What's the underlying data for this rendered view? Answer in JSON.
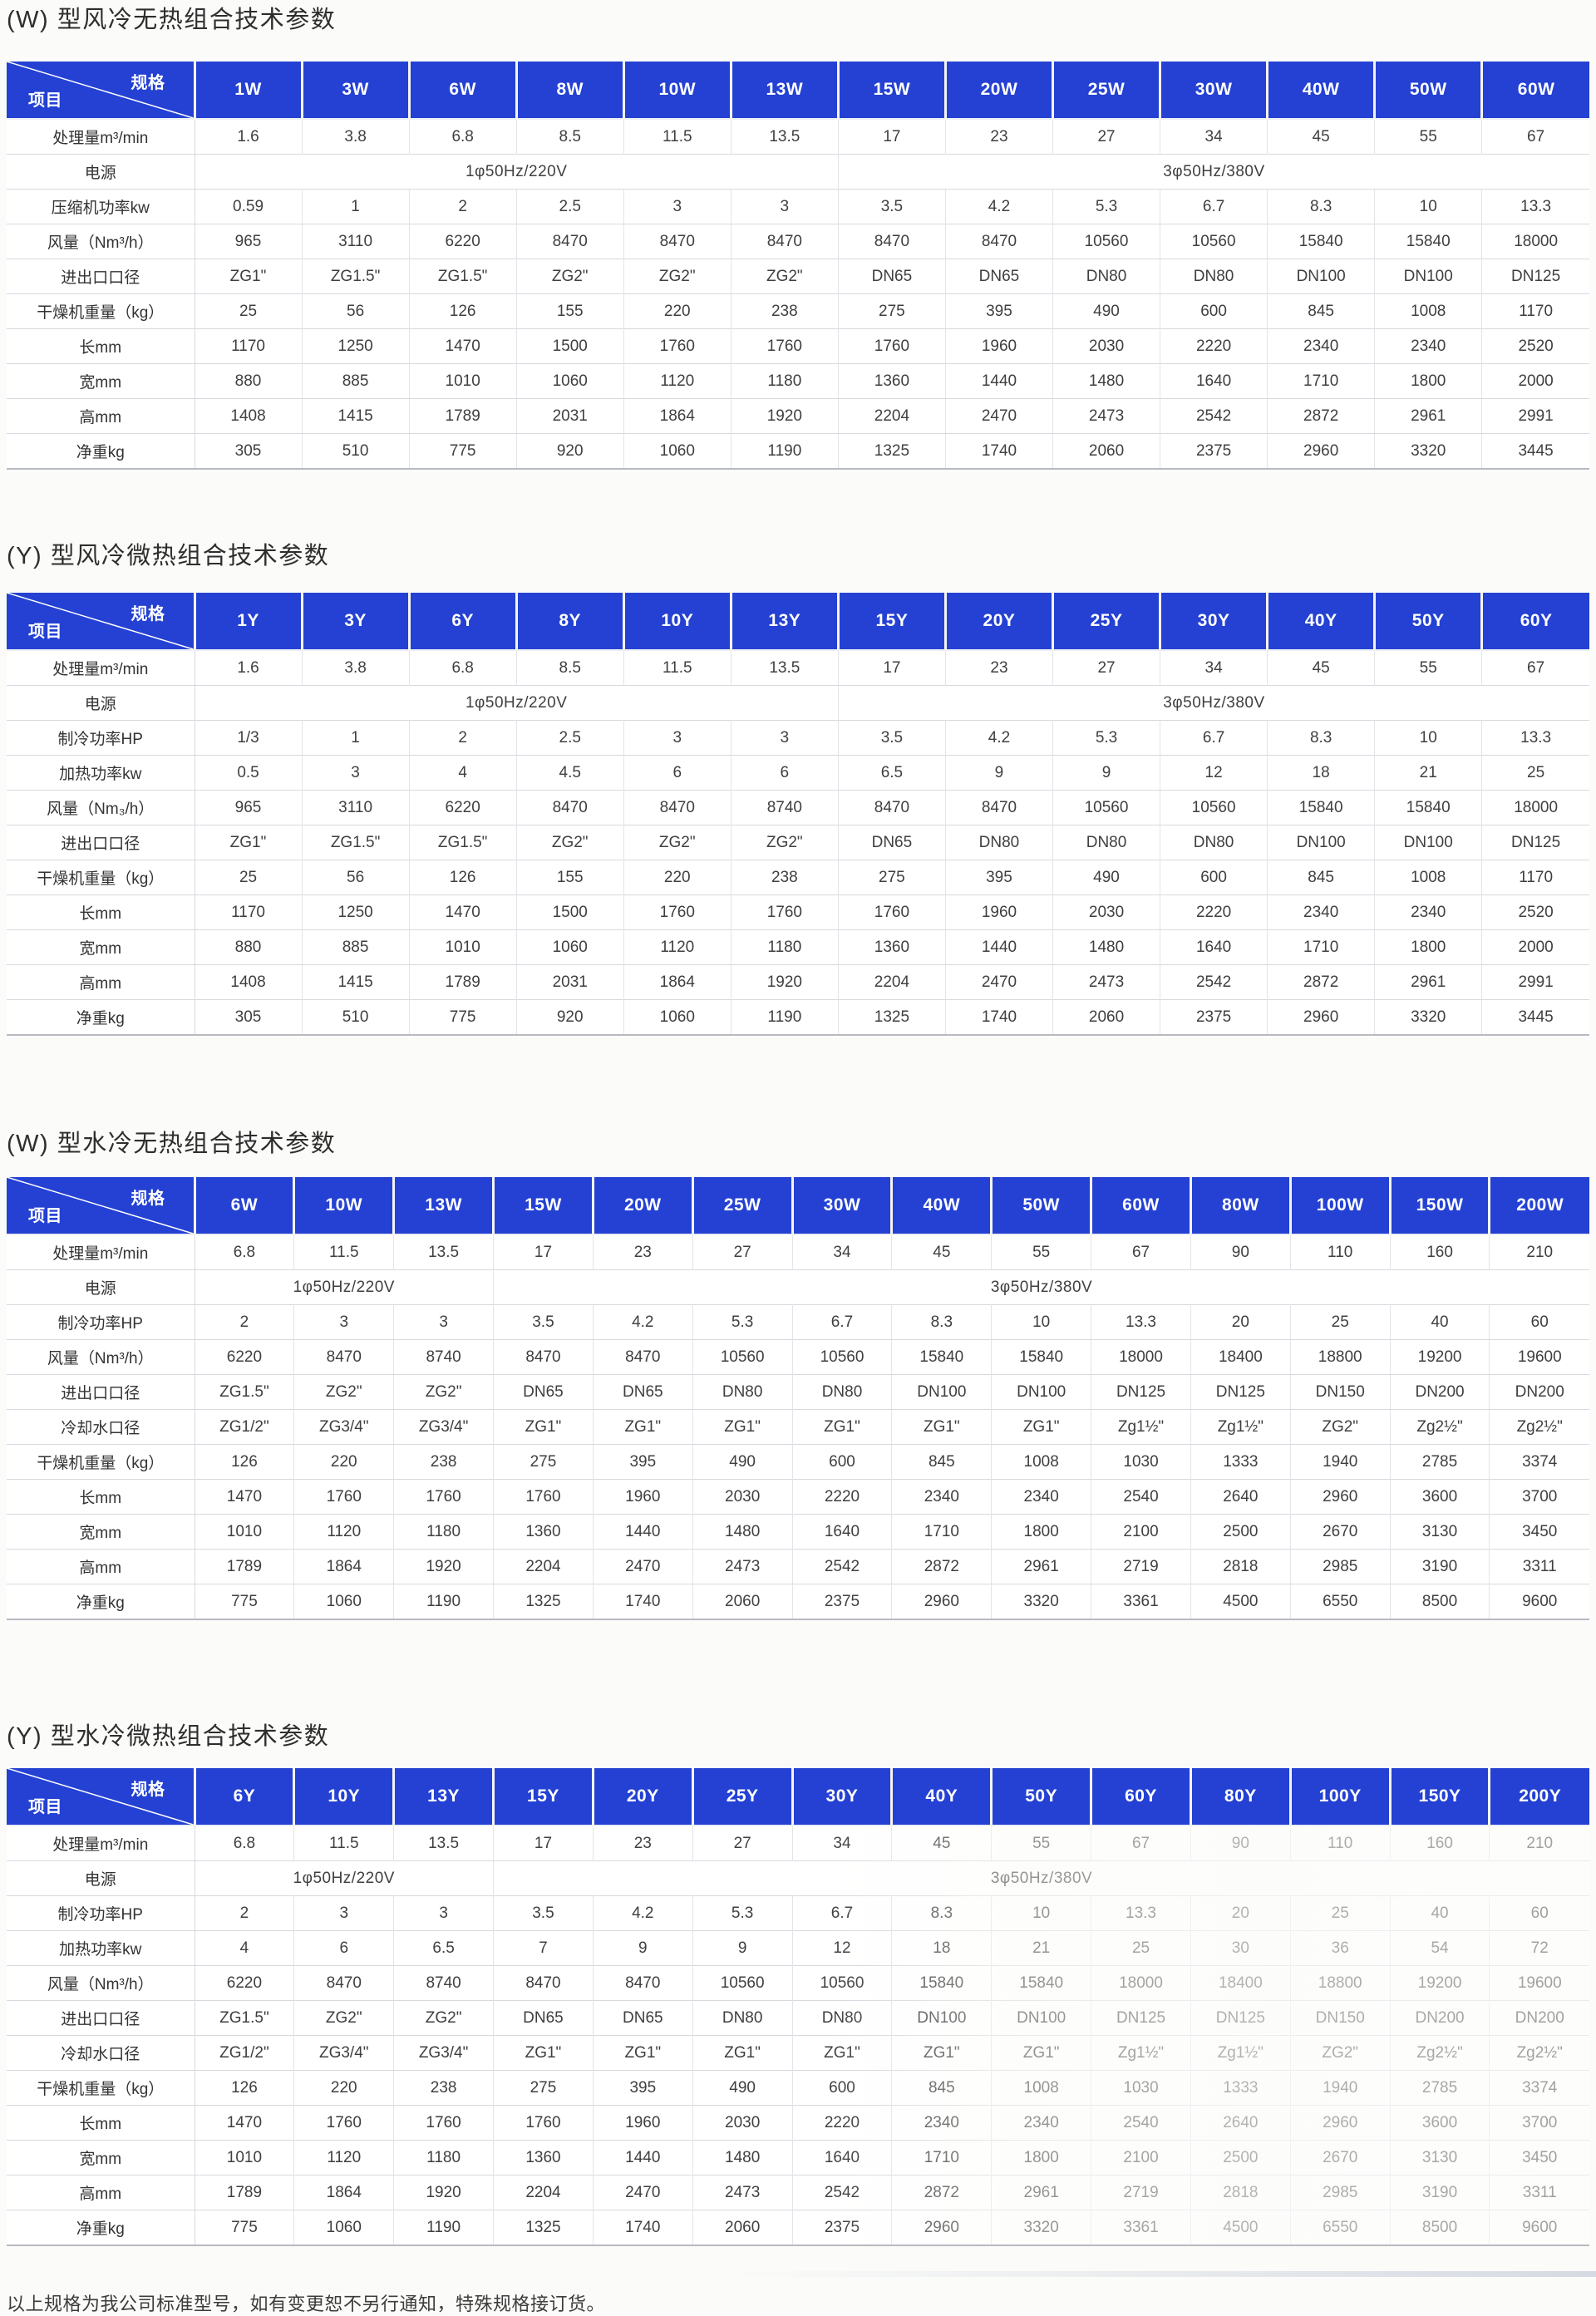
{
  "corner": {
    "top_right": "规格",
    "bottom_left": "项目"
  },
  "colors": {
    "header_blue": "#2441d3",
    "header_text": "#ffffff",
    "cell_text": "#3f3f3f"
  },
  "footer_note": "以上规格为我公司标准型号，如有变更恕不另行通知，特殊规格接订货。",
  "tables": [
    {
      "title": "(W) 型风冷无热组合技术参数",
      "columns": [
        "1W",
        "3W",
        "6W",
        "8W",
        "10W",
        "13W",
        "15W",
        "20W",
        "25W",
        "30W",
        "40W",
        "50W",
        "60W"
      ],
      "rows": [
        {
          "label": "处理量m³/min",
          "cells": [
            "1.6",
            "3.8",
            "6.8",
            "8.5",
            "11.5",
            "13.5",
            "17",
            "23",
            "27",
            "34",
            "45",
            "55",
            "67"
          ]
        },
        {
          "label": "电源",
          "span_cells": [
            {
              "text": "1φ50Hz/220V",
              "span": 6
            },
            {
              "text": "3φ50Hz/380V",
              "span": 7
            }
          ]
        },
        {
          "label": "压缩机功率kw",
          "cells": [
            "0.59",
            "1",
            "2",
            "2.5",
            "3",
            "3",
            "3.5",
            "4.2",
            "5.3",
            "6.7",
            "8.3",
            "10",
            "13.3"
          ]
        },
        {
          "label": "风量（Nm³/h）",
          "cells": [
            "965",
            "3110",
            "6220",
            "8470",
            "8470",
            "8470",
            "8470",
            "8470",
            "10560",
            "10560",
            "15840",
            "15840",
            "18000"
          ]
        },
        {
          "label": "进出口口径",
          "cells": [
            "ZG1\"",
            "ZG1.5\"",
            "ZG1.5\"",
            "ZG2\"",
            "ZG2\"",
            "ZG2\"",
            "DN65",
            "DN65",
            "DN80",
            "DN80",
            "DN100",
            "DN100",
            "DN125"
          ]
        },
        {
          "label": "干燥机重量（kg）",
          "cells": [
            "25",
            "56",
            "126",
            "155",
            "220",
            "238",
            "275",
            "395",
            "490",
            "600",
            "845",
            "1008",
            "1170"
          ]
        },
        {
          "label": "长mm",
          "cells": [
            "1170",
            "1250",
            "1470",
            "1500",
            "1760",
            "1760",
            "1760",
            "1960",
            "2030",
            "2220",
            "2340",
            "2340",
            "2520"
          ]
        },
        {
          "label": "宽mm",
          "cells": [
            "880",
            "885",
            "1010",
            "1060",
            "1120",
            "1180",
            "1360",
            "1440",
            "1480",
            "1640",
            "1710",
            "1800",
            "2000"
          ]
        },
        {
          "label": "高mm",
          "cells": [
            "1408",
            "1415",
            "1789",
            "2031",
            "1864",
            "1920",
            "2204",
            "2470",
            "2473",
            "2542",
            "2872",
            "2961",
            "2991"
          ]
        },
        {
          "label": "净重kg",
          "cells": [
            "305",
            "510",
            "775",
            "920",
            "1060",
            "1190",
            "1325",
            "1740",
            "2060",
            "2375",
            "2960",
            "3320",
            "3445"
          ]
        }
      ]
    },
    {
      "title": "(Y) 型风冷微热组合技术参数",
      "columns": [
        "1Y",
        "3Y",
        "6Y",
        "8Y",
        "10Y",
        "13Y",
        "15Y",
        "20Y",
        "25Y",
        "30Y",
        "40Y",
        "50Y",
        "60Y"
      ],
      "rows": [
        {
          "label": "处理量m³/min",
          "cells": [
            "1.6",
            "3.8",
            "6.8",
            "8.5",
            "11.5",
            "13.5",
            "17",
            "23",
            "27",
            "34",
            "45",
            "55",
            "67"
          ]
        },
        {
          "label": "电源",
          "span_cells": [
            {
              "text": "1φ50Hz/220V",
              "span": 6
            },
            {
              "text": "3φ50Hz/380V",
              "span": 7
            }
          ]
        },
        {
          "label": "制冷功率HP",
          "cells": [
            "1/3",
            "1",
            "2",
            "2.5",
            "3",
            "3",
            "3.5",
            "4.2",
            "5.3",
            "6.7",
            "8.3",
            "10",
            "13.3"
          ]
        },
        {
          "label": "加热功率kw",
          "cells": [
            "0.5",
            "3",
            "4",
            "4.5",
            "6",
            "6",
            "6.5",
            "9",
            "9",
            "12",
            "18",
            "21",
            "25"
          ]
        },
        {
          "label": "风量（Nm₃/h）",
          "cells": [
            "965",
            "3110",
            "6220",
            "8470",
            "8470",
            "8740",
            "8470",
            "8470",
            "10560",
            "10560",
            "15840",
            "15840",
            "18000"
          ]
        },
        {
          "label": "进出口口径",
          "cells": [
            "ZG1\"",
            "ZG1.5\"",
            "ZG1.5\"",
            "ZG2\"",
            "ZG2\"",
            "ZG2\"",
            "DN65",
            "DN80",
            "DN80",
            "DN80",
            "DN100",
            "DN100",
            "DN125"
          ]
        },
        {
          "label": "干燥机重量（kg）",
          "cells": [
            "25",
            "56",
            "126",
            "155",
            "220",
            "238",
            "275",
            "395",
            "490",
            "600",
            "845",
            "1008",
            "1170"
          ]
        },
        {
          "label": "长mm",
          "cells": [
            "1170",
            "1250",
            "1470",
            "1500",
            "1760",
            "1760",
            "1760",
            "1960",
            "2030",
            "2220",
            "2340",
            "2340",
            "2520"
          ]
        },
        {
          "label": "宽mm",
          "cells": [
            "880",
            "885",
            "1010",
            "1060",
            "1120",
            "1180",
            "1360",
            "1440",
            "1480",
            "1640",
            "1710",
            "1800",
            "2000"
          ]
        },
        {
          "label": "高mm",
          "cells": [
            "1408",
            "1415",
            "1789",
            "2031",
            "1864",
            "1920",
            "2204",
            "2470",
            "2473",
            "2542",
            "2872",
            "2961",
            "2991"
          ]
        },
        {
          "label": "净重kg",
          "cells": [
            "305",
            "510",
            "775",
            "920",
            "1060",
            "1190",
            "1325",
            "1740",
            "2060",
            "2375",
            "2960",
            "3320",
            "3445"
          ]
        }
      ]
    },
    {
      "title": "(W) 型水冷无热组合技术参数",
      "columns": [
        "6W",
        "10W",
        "13W",
        "15W",
        "20W",
        "25W",
        "30W",
        "40W",
        "50W",
        "60W",
        "80W",
        "100W",
        "150W",
        "200W"
      ],
      "rows": [
        {
          "label": "处理量m³/min",
          "cells": [
            "6.8",
            "11.5",
            "13.5",
            "17",
            "23",
            "27",
            "34",
            "45",
            "55",
            "67",
            "90",
            "110",
            "160",
            "210"
          ]
        },
        {
          "label": "电源",
          "span_cells": [
            {
              "text": "1φ50Hz/220V",
              "span": 3
            },
            {
              "text": "3φ50Hz/380V",
              "span": 11
            }
          ]
        },
        {
          "label": "制冷功率HP",
          "cells": [
            "2",
            "3",
            "3",
            "3.5",
            "4.2",
            "5.3",
            "6.7",
            "8.3",
            "10",
            "13.3",
            "20",
            "25",
            "40",
            "60"
          ]
        },
        {
          "label": "风量（Nm³/h）",
          "cells": [
            "6220",
            "8470",
            "8740",
            "8470",
            "8470",
            "10560",
            "10560",
            "15840",
            "15840",
            "18000",
            "18400",
            "18800",
            "19200",
            "19600"
          ]
        },
        {
          "label": "进出口口径",
          "cells": [
            "ZG1.5\"",
            "ZG2\"",
            "ZG2\"",
            "DN65",
            "DN65",
            "DN80",
            "DN80",
            "DN100",
            "DN100",
            "DN125",
            "DN125",
            "DN150",
            "DN200",
            "DN200"
          ]
        },
        {
          "label": "冷却水口径",
          "cells": [
            "ZG1/2\"",
            "ZG3/4\"",
            "ZG3/4\"",
            "ZG1\"",
            "ZG1\"",
            "ZG1\"",
            "ZG1\"",
            "ZG1\"",
            "ZG1\"",
            "Zg1½\"",
            "Zg1½\"",
            "ZG2\"",
            "Zg2½\"",
            "Zg2½\""
          ]
        },
        {
          "label": "干燥机重量（kg）",
          "cells": [
            "126",
            "220",
            "238",
            "275",
            "395",
            "490",
            "600",
            "845",
            "1008",
            "1030",
            "1333",
            "1940",
            "2785",
            "3374"
          ]
        },
        {
          "label": "长mm",
          "cells": [
            "1470",
            "1760",
            "1760",
            "1760",
            "1960",
            "2030",
            "2220",
            "2340",
            "2340",
            "2540",
            "2640",
            "2960",
            "3600",
            "3700"
          ]
        },
        {
          "label": "宽mm",
          "cells": [
            "1010",
            "1120",
            "1180",
            "1360",
            "1440",
            "1480",
            "1640",
            "1710",
            "1800",
            "2100",
            "2500",
            "2670",
            "3130",
            "3450"
          ]
        },
        {
          "label": "高mm",
          "cells": [
            "1789",
            "1864",
            "1920",
            "2204",
            "2470",
            "2473",
            "2542",
            "2872",
            "2961",
            "2719",
            "2818",
            "2985",
            "3190",
            "3311"
          ]
        },
        {
          "label": "净重kg",
          "cells": [
            "775",
            "1060",
            "1190",
            "1325",
            "1740",
            "2060",
            "2375",
            "2960",
            "3320",
            "3361",
            "4500",
            "6550",
            "8500",
            "9600"
          ]
        }
      ]
    },
    {
      "title": "(Y) 型水冷微热组合技术参数",
      "faded_right": true,
      "columns": [
        "6Y",
        "10Y",
        "13Y",
        "15Y",
        "20Y",
        "25Y",
        "30Y",
        "40Y",
        "50Y",
        "60Y",
        "80Y",
        "100Y",
        "150Y",
        "200Y"
      ],
      "rows": [
        {
          "label": "处理量m³/min",
          "cells": [
            "6.8",
            "11.5",
            "13.5",
            "17",
            "23",
            "27",
            "34",
            "45",
            "55",
            "67",
            "90",
            "110",
            "160",
            "210"
          ]
        },
        {
          "label": "电源",
          "span_cells": [
            {
              "text": "1φ50Hz/220V",
              "span": 3
            },
            {
              "text": "3φ50Hz/380V",
              "span": 11
            }
          ]
        },
        {
          "label": "制冷功率HP",
          "cells": [
            "2",
            "3",
            "3",
            "3.5",
            "4.2",
            "5.3",
            "6.7",
            "8.3",
            "10",
            "13.3",
            "20",
            "25",
            "40",
            "60"
          ]
        },
        {
          "label": "加热功率kw",
          "cells": [
            "4",
            "6",
            "6.5",
            "7",
            "9",
            "9",
            "12",
            "18",
            "21",
            "25",
            "30",
            "36",
            "54",
            "72"
          ]
        },
        {
          "label": "风量（Nm³/h）",
          "cells": [
            "6220",
            "8470",
            "8740",
            "8470",
            "8470",
            "10560",
            "10560",
            "15840",
            "15840",
            "18000",
            "18400",
            "18800",
            "19200",
            "19600"
          ]
        },
        {
          "label": "进出口口径",
          "cells": [
            "ZG1.5\"",
            "ZG2\"",
            "ZG2\"",
            "DN65",
            "DN65",
            "DN80",
            "DN80",
            "DN100",
            "DN100",
            "DN125",
            "DN125",
            "DN150",
            "DN200",
            "DN200"
          ]
        },
        {
          "label": "冷却水口径",
          "cells": [
            "ZG1/2\"",
            "ZG3/4\"",
            "ZG3/4\"",
            "ZG1\"",
            "ZG1\"",
            "ZG1\"",
            "ZG1\"",
            "ZG1\"",
            "ZG1\"",
            "Zg1½\"",
            "Zg1½\"",
            "ZG2\"",
            "Zg2½\"",
            "Zg2½\""
          ]
        },
        {
          "label": "干燥机重量（kg）",
          "cells": [
            "126",
            "220",
            "238",
            "275",
            "395",
            "490",
            "600",
            "845",
            "1008",
            "1030",
            "1333",
            "1940",
            "2785",
            "3374"
          ]
        },
        {
          "label": "长mm",
          "cells": [
            "1470",
            "1760",
            "1760",
            "1760",
            "1960",
            "2030",
            "2220",
            "2340",
            "2340",
            "2540",
            "2640",
            "2960",
            "3600",
            "3700"
          ]
        },
        {
          "label": "宽mm",
          "cells": [
            "1010",
            "1120",
            "1180",
            "1360",
            "1440",
            "1480",
            "1640",
            "1710",
            "1800",
            "2100",
            "2500",
            "2670",
            "3130",
            "3450"
          ]
        },
        {
          "label": "高mm",
          "cells": [
            "1789",
            "1864",
            "1920",
            "2204",
            "2470",
            "2473",
            "2542",
            "2872",
            "2961",
            "2719",
            "2818",
            "2985",
            "3190",
            "3311"
          ]
        },
        {
          "label": "净重kg",
          "cells": [
            "775",
            "1060",
            "1190",
            "1325",
            "1740",
            "2060",
            "2375",
            "2960",
            "3320",
            "3361",
            "4500",
            "6550",
            "8500",
            "9600"
          ]
        }
      ]
    }
  ]
}
